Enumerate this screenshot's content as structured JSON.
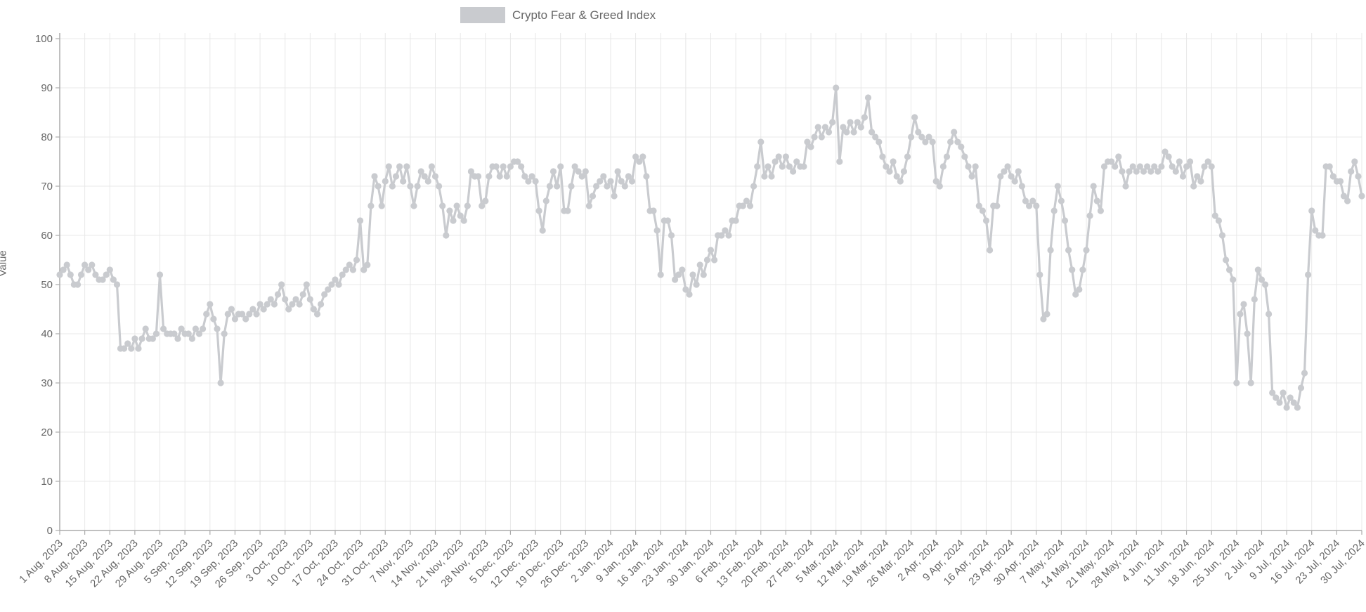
{
  "page": {
    "background": "#ffffff"
  },
  "chart_data": {
    "type": "line",
    "title": "Crypto Fear & Greed Index",
    "legend_label": "Crypto Fear & Greed Index",
    "legend_position": "top-center",
    "xlabel": "",
    "ylabel": "Value",
    "ylim": [
      0,
      100
    ],
    "yticks": [
      0,
      10,
      20,
      30,
      40,
      50,
      60,
      70,
      80,
      90,
      100
    ],
    "grid": true,
    "frequency": "daily",
    "x_start": "1 Aug, 2023",
    "x_end": "30 Jul, 2024",
    "x_tick_every_days": 7,
    "x_tick_labels": [
      "1 Aug, 2023",
      "8 Aug, 2023",
      "15 Aug, 2023",
      "22 Aug, 2023",
      "29 Aug, 2023",
      "5 Sep, 2023",
      "12 Sep, 2023",
      "19 Sep, 2023",
      "26 Sep, 2023",
      "3 Oct, 2023",
      "10 Oct, 2023",
      "17 Oct, 2023",
      "24 Oct, 2023",
      "31 Oct, 2023",
      "7 Nov, 2023",
      "14 Nov, 2023",
      "21 Nov, 2023",
      "28 Nov, 2023",
      "5 Dec, 2023",
      "12 Dec, 2023",
      "19 Dec, 2023",
      "26 Dec, 2023",
      "2 Jan, 2024",
      "9 Jan, 2024",
      "16 Jan, 2024",
      "23 Jan, 2024",
      "30 Jan, 2024",
      "6 Feb, 2024",
      "13 Feb, 2024",
      "20 Feb, 2024",
      "27 Feb, 2024",
      "5 Mar, 2024",
      "12 Mar, 2024",
      "19 Mar, 2024",
      "26 Mar, 2024",
      "2 Apr, 2024",
      "9 Apr, 2024",
      "16 Apr, 2024",
      "23 Apr, 2024",
      "30 Apr, 2024",
      "7 May, 2024",
      "14 May, 2024",
      "21 May, 2024",
      "28 May, 2024",
      "4 Jun, 2024",
      "11 Jun, 2024",
      "18 Jun, 2024",
      "25 Jun, 2024",
      "2 Jul, 2024",
      "9 Jul, 2024",
      "16 Jul, 2024",
      "23 Jul, 2024",
      "30 Jul, 2024"
    ],
    "values": [
      52,
      53,
      54,
      52,
      50,
      50,
      52,
      54,
      53,
      54,
      52,
      51,
      51,
      52,
      53,
      51,
      50,
      37,
      37,
      38,
      37,
      39,
      37,
      39,
      41,
      39,
      39,
      40,
      52,
      41,
      40,
      40,
      40,
      39,
      41,
      40,
      40,
      39,
      41,
      40,
      41,
      44,
      46,
      43,
      41,
      30,
      40,
      44,
      45,
      43,
      44,
      44,
      43,
      44,
      45,
      44,
      46,
      45,
      46,
      47,
      46,
      48,
      50,
      47,
      45,
      46,
      47,
      46,
      48,
      50,
      47,
      45,
      44,
      46,
      48,
      49,
      50,
      51,
      50,
      52,
      53,
      54,
      53,
      55,
      63,
      53,
      54,
      66,
      72,
      70,
      66,
      71,
      74,
      70,
      72,
      74,
      71,
      74,
      70,
      66,
      70,
      73,
      72,
      71,
      74,
      72,
      70,
      66,
      60,
      65,
      63,
      66,
      64,
      63,
      66,
      73,
      72,
      72,
      66,
      67,
      72,
      74,
      74,
      72,
      74,
      72,
      74,
      75,
      75,
      74,
      72,
      71,
      72,
      71,
      65,
      61,
      67,
      70,
      73,
      70,
      74,
      65,
      65,
      70,
      74,
      73,
      72,
      73,
      66,
      68,
      70,
      71,
      72,
      70,
      71,
      68,
      73,
      71,
      70,
      72,
      71,
      76,
      75,
      76,
      72,
      65,
      65,
      61,
      52,
      63,
      63,
      60,
      51,
      52,
      53,
      49,
      48,
      52,
      50,
      54,
      52,
      55,
      57,
      55,
      60,
      60,
      61,
      60,
      63,
      63,
      66,
      66,
      67,
      66,
      70,
      74,
      79,
      72,
      74,
      72,
      75,
      76,
      74,
      76,
      74,
      73,
      75,
      74,
      74,
      79,
      78,
      80,
      82,
      80,
      82,
      81,
      83,
      90,
      75,
      82,
      81,
      83,
      81,
      83,
      82,
      84,
      88,
      81,
      80,
      79,
      76,
      74,
      73,
      75,
      72,
      71,
      73,
      76,
      80,
      84,
      81,
      80,
      79,
      80,
      79,
      71,
      70,
      74,
      76,
      79,
      81,
      79,
      78,
      76,
      74,
      72,
      74,
      66,
      65,
      63,
      57,
      66,
      66,
      72,
      73,
      74,
      72,
      71,
      73,
      70,
      67,
      66,
      67,
      66,
      52,
      43,
      44,
      57,
      65,
      70,
      67,
      63,
      57,
      53,
      48,
      49,
      53,
      57,
      64,
      70,
      67,
      65,
      74,
      75,
      75,
      74,
      76,
      73,
      70,
      73,
      74,
      73,
      74,
      73,
      74,
      73,
      74,
      73,
      74,
      77,
      76,
      74,
      73,
      75,
      72,
      74,
      75,
      70,
      72,
      71,
      74,
      75,
      74,
      64,
      63,
      60,
      55,
      53,
      51,
      30,
      44,
      46,
      40,
      30,
      47,
      53,
      51,
      50,
      44,
      28,
      27,
      26,
      28,
      25,
      27,
      26,
      25,
      29,
      32,
      52,
      65,
      61,
      60,
      60,
      74,
      74,
      72,
      71,
      71,
      68,
      67,
      73,
      75,
      72,
      68
    ],
    "colors": {
      "line": "#c9cbcf",
      "point": "#c9cbcf",
      "legend_box": "#c9cbcf",
      "grid": "#e8e8e8",
      "axis": "#ababab",
      "text": "#666666",
      "background": "#ffffff"
    }
  }
}
